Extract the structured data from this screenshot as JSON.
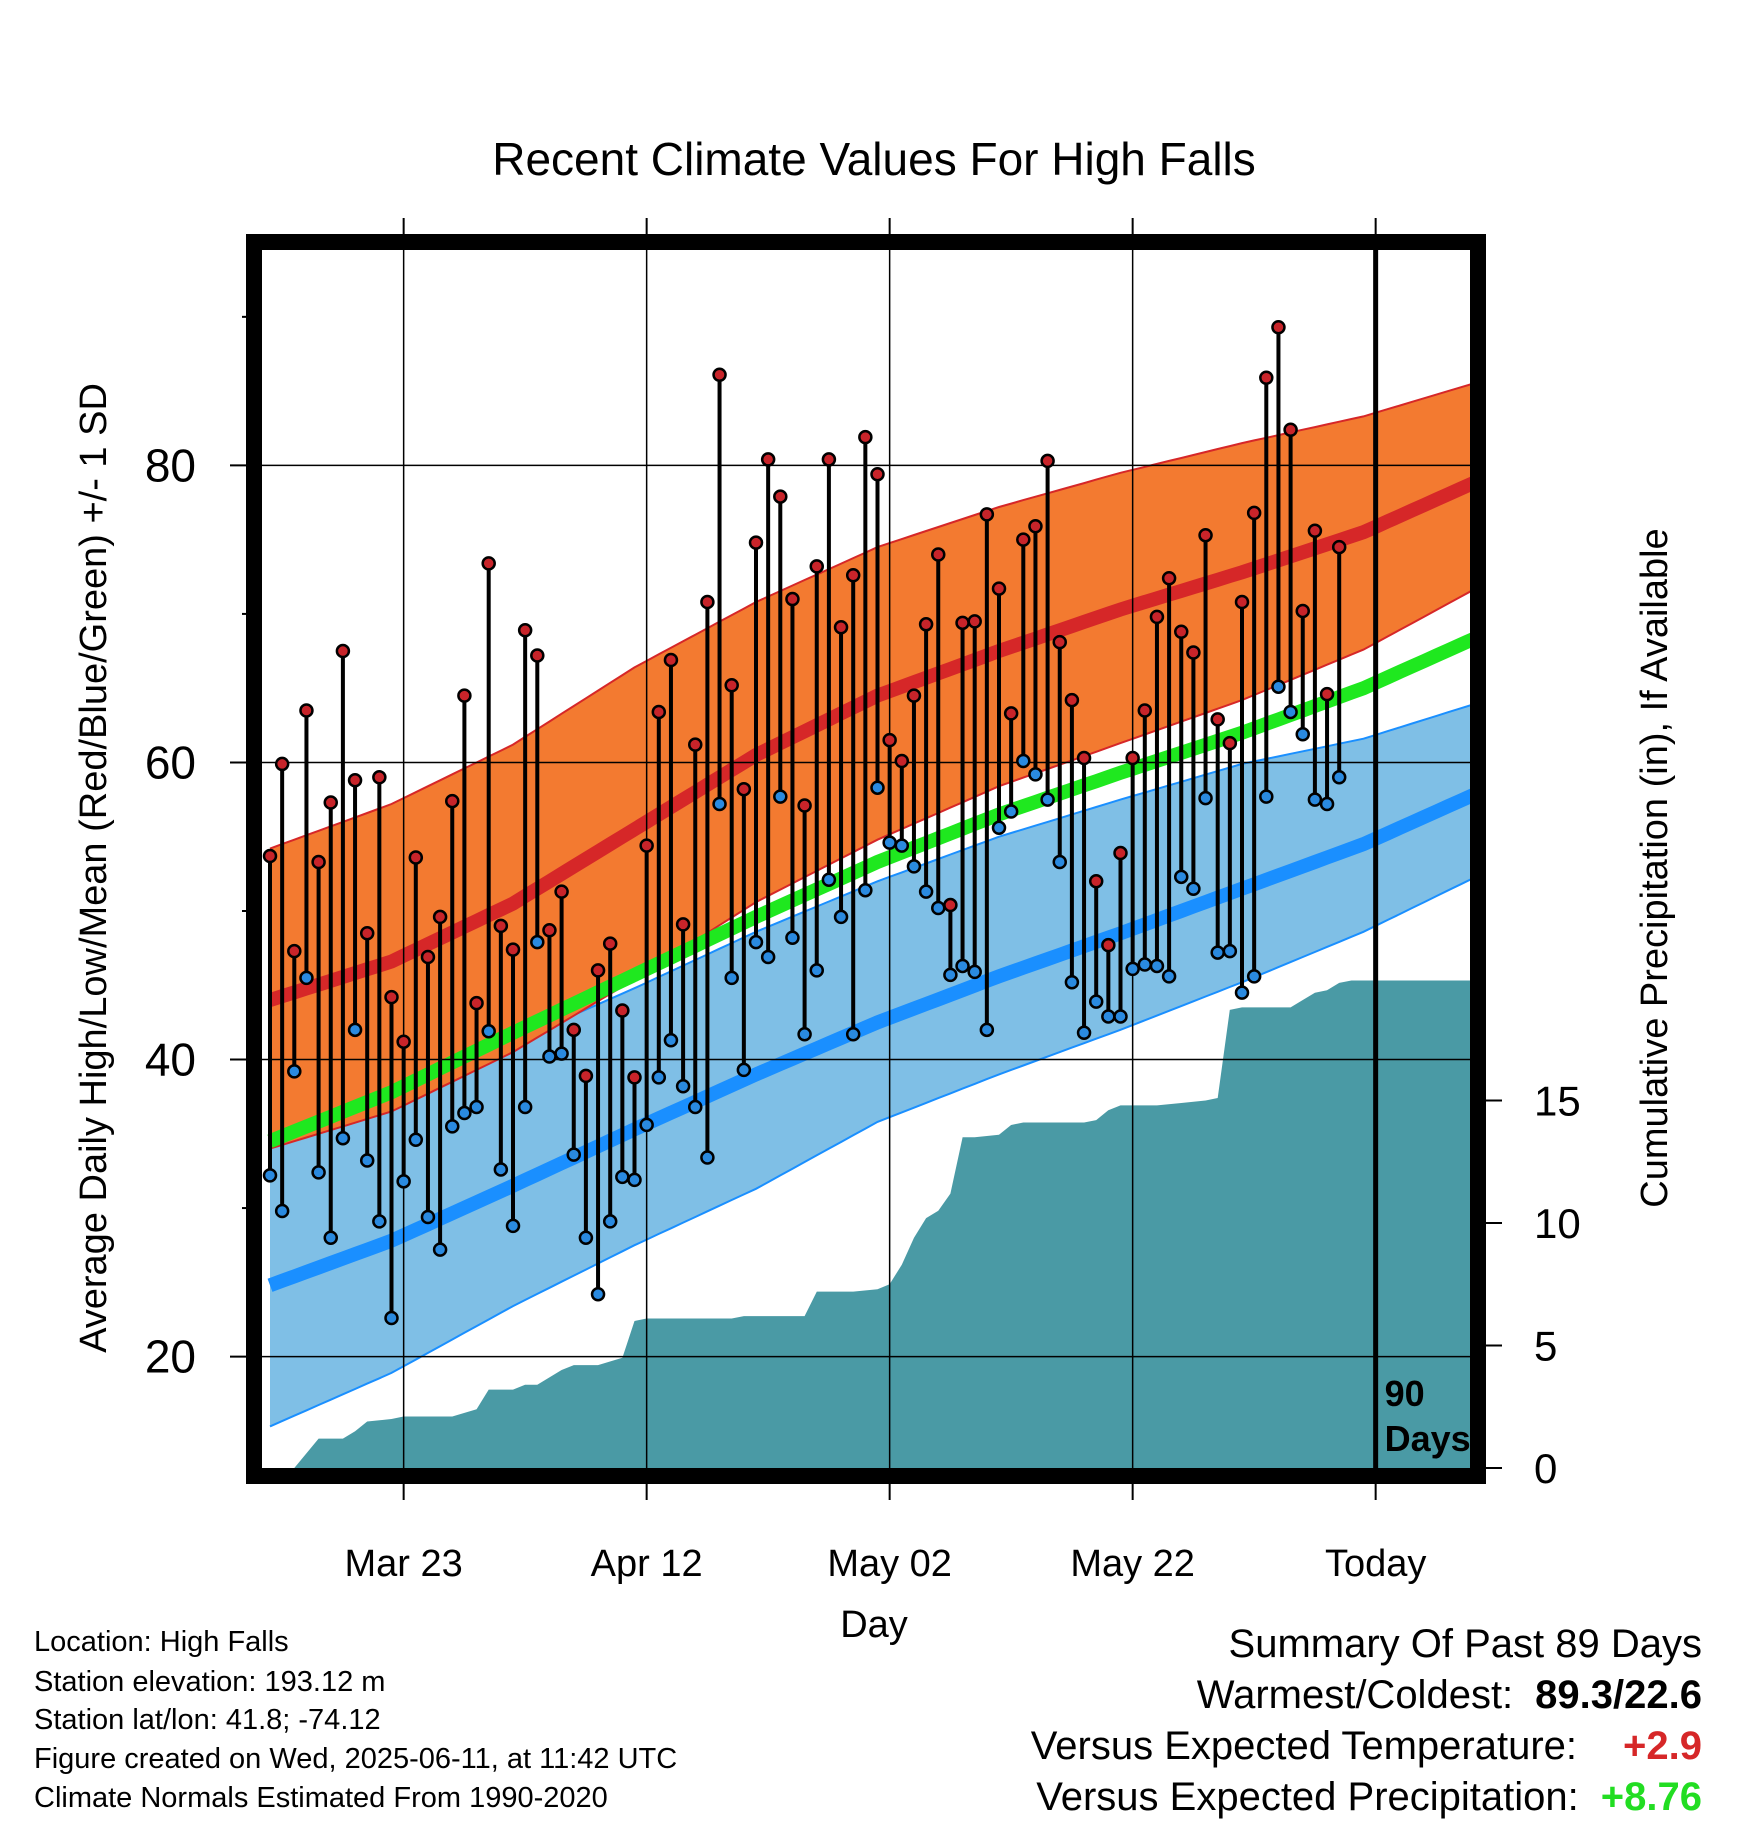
{
  "chart_data": {
    "type": "line",
    "title": "Recent Climate Values For High Falls",
    "xlabel": "Day",
    "ylabel": "Average Daily High/Low/Mean (Red/Blue/Green) +/- 1 SD",
    "y2label": "Cumulative Precipitation (in), If Available",
    "ylim": [
      12.5,
      94.5
    ],
    "y2lim": [
      0,
      40
    ],
    "yticks": [
      "20",
      "40",
      "60",
      "80"
    ],
    "y2ticks": [
      "0",
      "5",
      "10",
      "15"
    ],
    "xticks": [
      {
        "day": 11,
        "label": "Mar 23"
      },
      {
        "day": 31,
        "label": "Apr 12"
      },
      {
        "day": 51,
        "label": "May 02"
      },
      {
        "day": 71,
        "label": "May 22"
      },
      {
        "day": 91,
        "label": "Today"
      }
    ],
    "today_day": 91,
    "today_annotation": [
      "90",
      "Days"
    ],
    "grid": true,
    "normals": {
      "high_mean": [
        {
          "day": 0,
          "value": 44.0
        },
        {
          "day": 10,
          "value": 46.6
        },
        {
          "day": 20,
          "value": 50.5
        },
        {
          "day": 30,
          "value": 55.5
        },
        {
          "day": 40,
          "value": 60.5
        },
        {
          "day": 50,
          "value": 64.5
        },
        {
          "day": 60,
          "value": 67.5
        },
        {
          "day": 70,
          "value": 70.3
        },
        {
          "day": 80,
          "value": 72.8
        },
        {
          "day": 90,
          "value": 75.5
        },
        {
          "day": 99,
          "value": 78.8
        }
      ],
      "high_upper": [
        {
          "day": 0,
          "value": 54.2
        },
        {
          "day": 10,
          "value": 57.2
        },
        {
          "day": 20,
          "value": 61.2
        },
        {
          "day": 30,
          "value": 66.4
        },
        {
          "day": 40,
          "value": 70.8
        },
        {
          "day": 50,
          "value": 74.5
        },
        {
          "day": 60,
          "value": 77.2
        },
        {
          "day": 70,
          "value": 79.5
        },
        {
          "day": 80,
          "value": 81.5
        },
        {
          "day": 90,
          "value": 83.3
        },
        {
          "day": 99,
          "value": 85.5
        }
      ],
      "high_lower": [
        {
          "day": 0,
          "value": 34.0
        },
        {
          "day": 10,
          "value": 36.5
        },
        {
          "day": 20,
          "value": 40.5
        },
        {
          "day": 30,
          "value": 45.4
        },
        {
          "day": 40,
          "value": 50.6
        },
        {
          "day": 50,
          "value": 54.8
        },
        {
          "day": 60,
          "value": 58.4
        },
        {
          "day": 70,
          "value": 61.3
        },
        {
          "day": 80,
          "value": 64.2
        },
        {
          "day": 90,
          "value": 67.6
        },
        {
          "day": 99,
          "value": 71.6
        }
      ],
      "mean": [
        {
          "day": 0,
          "value": 34.5
        },
        {
          "day": 10,
          "value": 37.8
        },
        {
          "day": 20,
          "value": 41.8
        },
        {
          "day": 30,
          "value": 45.7
        },
        {
          "day": 40,
          "value": 49.6
        },
        {
          "day": 50,
          "value": 53.3
        },
        {
          "day": 60,
          "value": 56.5
        },
        {
          "day": 70,
          "value": 59.3
        },
        {
          "day": 80,
          "value": 62.0
        },
        {
          "day": 90,
          "value": 65.0
        },
        {
          "day": 99,
          "value": 68.3
        }
      ],
      "low_mean": [
        {
          "day": 0,
          "value": 24.8
        },
        {
          "day": 10,
          "value": 27.8
        },
        {
          "day": 20,
          "value": 31.5
        },
        {
          "day": 30,
          "value": 35.3
        },
        {
          "day": 40,
          "value": 39.0
        },
        {
          "day": 50,
          "value": 42.5
        },
        {
          "day": 60,
          "value": 45.6
        },
        {
          "day": 70,
          "value": 48.5
        },
        {
          "day": 80,
          "value": 51.5
        },
        {
          "day": 90,
          "value": 54.5
        },
        {
          "day": 99,
          "value": 57.8
        }
      ],
      "low_upper": [
        {
          "day": 0,
          "value": 35.2
        },
        {
          "day": 10,
          "value": 37.6
        },
        {
          "day": 20,
          "value": 41.2
        },
        {
          "day": 30,
          "value": 44.8
        },
        {
          "day": 40,
          "value": 48.6
        },
        {
          "day": 50,
          "value": 52.0
        },
        {
          "day": 60,
          "value": 55.0
        },
        {
          "day": 70,
          "value": 57.5
        },
        {
          "day": 80,
          "value": 59.9
        },
        {
          "day": 90,
          "value": 61.6
        },
        {
          "day": 99,
          "value": 63.9
        }
      ],
      "low_lower": [
        {
          "day": 0,
          "value": 15.3
        },
        {
          "day": 10,
          "value": 18.9
        },
        {
          "day": 20,
          "value": 23.4
        },
        {
          "day": 30,
          "value": 27.5
        },
        {
          "day": 40,
          "value": 31.3
        },
        {
          "day": 50,
          "value": 35.8
        },
        {
          "day": 60,
          "value": 39.0
        },
        {
          "day": 70,
          "value": 42.0
        },
        {
          "day": 80,
          "value": 45.2
        },
        {
          "day": 90,
          "value": 48.6
        },
        {
          "day": 99,
          "value": 52.2
        }
      ]
    },
    "series": [
      {
        "name": "High",
        "values": [
          53.7,
          59.9,
          47.3,
          63.5,
          53.3,
          57.3,
          67.5,
          58.8,
          48.5,
          59.0,
          44.2,
          41.2,
          53.6,
          46.9,
          49.6,
          57.4,
          64.5,
          43.8,
          73.4,
          49.0,
          47.4,
          68.9,
          67.2,
          48.7,
          51.3,
          42.0,
          38.9,
          46.0,
          47.8,
          43.3,
          38.8,
          54.4,
          63.4,
          66.9,
          49.1,
          61.2,
          70.8,
          86.1,
          65.2,
          58.2,
          74.8,
          80.4,
          77.9,
          71.0,
          57.1,
          73.2,
          80.4,
          69.1,
          72.6,
          81.9,
          79.4,
          61.5,
          60.1,
          64.5,
          69.3,
          74.0,
          50.4,
          69.4,
          69.5,
          76.7,
          71.7,
          63.3,
          75.0,
          75.9,
          80.3,
          68.1,
          64.2,
          60.3,
          52.0,
          47.7,
          53.9,
          60.3,
          63.5,
          69.8,
          72.4,
          68.8,
          67.4,
          75.3,
          62.9,
          61.3,
          70.8,
          76.8,
          85.9,
          89.3,
          82.4,
          70.2,
          75.6,
          64.6,
          74.5
        ]
      },
      {
        "name": "Low",
        "values": [
          32.2,
          29.8,
          39.2,
          45.5,
          32.4,
          28.0,
          34.7,
          42.0,
          33.2,
          29.1,
          22.6,
          31.8,
          34.6,
          29.4,
          27.2,
          35.5,
          36.4,
          36.8,
          41.9,
          32.6,
          28.8,
          36.8,
          47.9,
          40.2,
          40.4,
          33.6,
          28.0,
          24.2,
          29.1,
          32.1,
          31.9,
          35.6,
          38.8,
          41.3,
          38.2,
          36.8,
          33.4,
          57.2,
          45.5,
          39.3,
          47.9,
          46.9,
          57.7,
          48.2,
          41.7,
          46.0,
          52.1,
          49.6,
          41.7,
          51.4,
          58.3,
          54.6,
          54.4,
          53.0,
          51.3,
          50.2,
          45.7,
          46.3,
          45.9,
          42.0,
          55.6,
          56.7,
          60.1,
          59.2,
          57.5,
          53.3,
          45.2,
          41.8,
          43.9,
          42.9,
          42.9,
          46.1,
          46.4,
          46.3,
          45.6,
          52.3,
          51.5,
          57.6,
          47.2,
          47.3,
          44.5,
          45.6,
          57.7,
          65.1,
          63.4,
          61.9,
          57.5,
          57.2,
          59.0
        ]
      }
    ],
    "precipitation": [
      {
        "day": 0,
        "value": 0
      },
      {
        "day": 2,
        "value": 0
      },
      {
        "day": 4,
        "value": 1.2
      },
      {
        "day": 6,
        "value": 1.2
      },
      {
        "day": 7,
        "value": 1.5
      },
      {
        "day": 8,
        "value": 1.9
      },
      {
        "day": 10,
        "value": 2.0
      },
      {
        "day": 11,
        "value": 2.1
      },
      {
        "day": 15,
        "value": 2.1
      },
      {
        "day": 17,
        "value": 2.4
      },
      {
        "day": 18,
        "value": 3.2
      },
      {
        "day": 20,
        "value": 3.2
      },
      {
        "day": 21,
        "value": 3.4
      },
      {
        "day": 22,
        "value": 3.4
      },
      {
        "day": 24,
        "value": 4.0
      },
      {
        "day": 25,
        "value": 4.2
      },
      {
        "day": 27,
        "value": 4.2
      },
      {
        "day": 29,
        "value": 4.5
      },
      {
        "day": 30,
        "value": 6.0
      },
      {
        "day": 31,
        "value": 6.1
      },
      {
        "day": 38,
        "value": 6.1
      },
      {
        "day": 39,
        "value": 6.2
      },
      {
        "day": 44,
        "value": 6.2
      },
      {
        "day": 45,
        "value": 7.2
      },
      {
        "day": 48,
        "value": 7.2
      },
      {
        "day": 50,
        "value": 7.3
      },
      {
        "day": 51,
        "value": 7.5
      },
      {
        "day": 52,
        "value": 8.3
      },
      {
        "day": 53,
        "value": 9.4
      },
      {
        "day": 54,
        "value": 10.2
      },
      {
        "day": 55,
        "value": 10.5
      },
      {
        "day": 56,
        "value": 11.2
      },
      {
        "day": 57,
        "value": 13.5
      },
      {
        "day": 58,
        "value": 13.5
      },
      {
        "day": 60,
        "value": 13.6
      },
      {
        "day": 61,
        "value": 14.0
      },
      {
        "day": 62,
        "value": 14.1
      },
      {
        "day": 64,
        "value": 14.1
      },
      {
        "day": 67,
        "value": 14.1
      },
      {
        "day": 68,
        "value": 14.2
      },
      {
        "day": 69,
        "value": 14.6
      },
      {
        "day": 70,
        "value": 14.8
      },
      {
        "day": 73,
        "value": 14.8
      },
      {
        "day": 75,
        "value": 14.9
      },
      {
        "day": 77,
        "value": 15.0
      },
      {
        "day": 78,
        "value": 15.1
      },
      {
        "day": 79,
        "value": 18.7
      },
      {
        "day": 80,
        "value": 18.8
      },
      {
        "day": 84,
        "value": 18.8
      },
      {
        "day": 85,
        "value": 19.1
      },
      {
        "day": 86,
        "value": 19.4
      },
      {
        "day": 87,
        "value": 19.5
      },
      {
        "day": 88,
        "value": 19.8
      },
      {
        "day": 89,
        "value": 19.9
      },
      {
        "day": 99,
        "value": 19.9
      }
    ],
    "colors": {
      "high": "#d62728",
      "high_band": "#f37a30",
      "mean": "#1fe81f",
      "low": "#1a8fff",
      "low_band": "#7fbfe6",
      "precip": "#4a9aa5",
      "high_point": "#c8242a",
      "low_point": "#2a8ae0"
    }
  },
  "info": {
    "location": "Location: High Falls",
    "elevation": "Station elevation: 193.12 m",
    "latlon": "Station lat/lon: 41.8; -74.12",
    "created": "Figure created on Wed, 2025-06-11, at 11:42 UTC",
    "normals": "Climate Normals Estimated From 1990-2020"
  },
  "summary": {
    "title": "Summary Of Past 89 Days",
    "warm_cold_label": "Warmest/Coldest:",
    "warm_cold_value": "89.3/22.6",
    "temp_label": "Versus Expected Temperature:",
    "temp_value": "+2.9",
    "temp_color": "#d62728",
    "precip_label": "Versus Expected Precipitation:",
    "precip_value": "+8.76",
    "precip_color": "#22dd22"
  }
}
